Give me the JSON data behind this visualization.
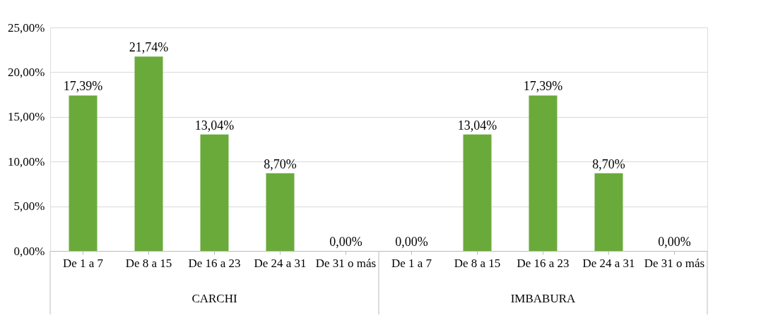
{
  "chart_data": {
    "type": "bar",
    "categories": [
      "De 1 a 7",
      "De 8 a 15",
      "De 16 a 23",
      "De 24 a 31",
      "De 31 o más",
      "De 1 a 7",
      "De 8 a 15",
      "De 16 a 23",
      "De 24 a 31",
      "De 31 o más"
    ],
    "values": [
      17.39,
      21.74,
      13.04,
      8.7,
      0,
      0,
      13.04,
      17.39,
      8.7,
      0
    ],
    "value_labels": [
      "17,39%",
      "21,74%",
      "13,04%",
      "8,70%",
      "0,00%",
      "0,00%",
      "13,04%",
      "17,39%",
      "8,70%",
      "0,00%"
    ],
    "color": "#6aaa3a",
    "ylim": [
      0,
      25
    ],
    "yticks": [
      {
        "value": 0,
        "label": "0,00%"
      },
      {
        "value": 5,
        "label": "5,00%"
      },
      {
        "value": 10,
        "label": "10,00%"
      },
      {
        "value": 15,
        "label": "15,00%"
      },
      {
        "value": 20,
        "label": "20,00%"
      },
      {
        "value": 25,
        "label": "25,00%"
      }
    ],
    "grid": "y",
    "annotations": [
      "CARCHI",
      "IMBABURA"
    ]
  }
}
